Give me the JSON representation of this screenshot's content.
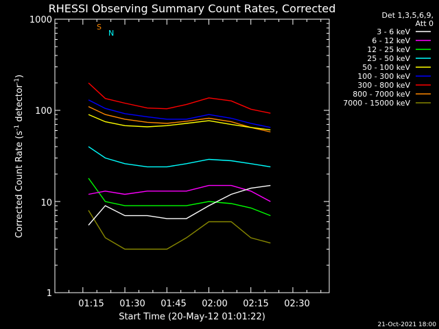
{
  "chart_data": {
    "type": "line",
    "title": "RHESSI Observing Summary Count Rates, Corrected",
    "xlabel": "Start Time (20-May-12 01:01:22)",
    "ylabel": "Corrected Count Rate (s⁻¹ detector⁻¹)",
    "ylabel_parts": [
      "Corrected Count Rate (s",
      "-1",
      " detector",
      "-1",
      ")"
    ],
    "y_scale": "log",
    "ylim": [
      1,
      1000
    ],
    "y_ticks": [
      {
        "value": 1,
        "label": "1"
      },
      {
        "value": 10,
        "label": "10"
      },
      {
        "value": 100,
        "label": "100"
      },
      {
        "value": 1000,
        "label": "1000"
      }
    ],
    "xlim": [
      "01:05",
      "02:43"
    ],
    "x_ticks": [
      "01:15",
      "01:30",
      "01:45",
      "02:00",
      "02:15",
      "02:30"
    ],
    "grid": false,
    "legend_position": "top-right, outside plot",
    "legend_header": [
      "Det 1,3,5,6,9,",
      "Att 0"
    ],
    "x": [
      "01:17",
      "01:23",
      "01:30",
      "01:38",
      "01:45",
      "01:52",
      "02:00",
      "02:08",
      "02:15",
      "02:22"
    ],
    "series": [
      {
        "name": "3 - 6 keV",
        "color": "#ffffff",
        "values": [
          5.5,
          9,
          7,
          7,
          6.5,
          6.5,
          9,
          12,
          14,
          15
        ]
      },
      {
        "name": "6 - 12 keV",
        "color": "#ff00ff",
        "values": [
          12,
          13,
          12,
          13,
          13,
          13,
          15,
          15,
          13,
          10
        ]
      },
      {
        "name": "12 - 25 keV",
        "color": "#00ff00",
        "values": [
          18,
          10,
          9,
          9,
          9,
          9,
          10,
          9.5,
          8.5,
          7
        ]
      },
      {
        "name": "25 - 50 keV",
        "color": "#00ffff",
        "values": [
          40,
          30,
          26,
          24,
          24,
          26,
          29,
          28,
          26,
          24
        ]
      },
      {
        "name": "50 - 100 keV",
        "color": "#ffff00",
        "values": [
          90,
          75,
          68,
          66,
          68,
          72,
          77,
          70,
          65,
          61
        ]
      },
      {
        "name": "100 - 300 keV",
        "color": "#0000ff",
        "values": [
          130,
          105,
          92,
          85,
          80,
          80,
          90,
          82,
          72,
          65
        ]
      },
      {
        "name": "300 - 800 keV",
        "color": "#ff0000",
        "values": [
          200,
          135,
          120,
          106,
          104,
          116,
          137,
          127,
          103,
          93
        ]
      },
      {
        "name": "800 - 7000 keV",
        "color": "#ff8800",
        "values": [
          110,
          90,
          80,
          74,
          72,
          76,
          82,
          75,
          65,
          58
        ]
      },
      {
        "name": "7000 - 15000 keV",
        "color": "#888800",
        "values": [
          8,
          4,
          3,
          3,
          3,
          4,
          6,
          6,
          4,
          3.5
        ]
      }
    ],
    "flags": [
      {
        "label": "S",
        "color": "#ff8800"
      },
      {
        "label": "N",
        "color": "#00ffff"
      }
    ],
    "timestamp": "21-Oct-2021 18:00"
  }
}
